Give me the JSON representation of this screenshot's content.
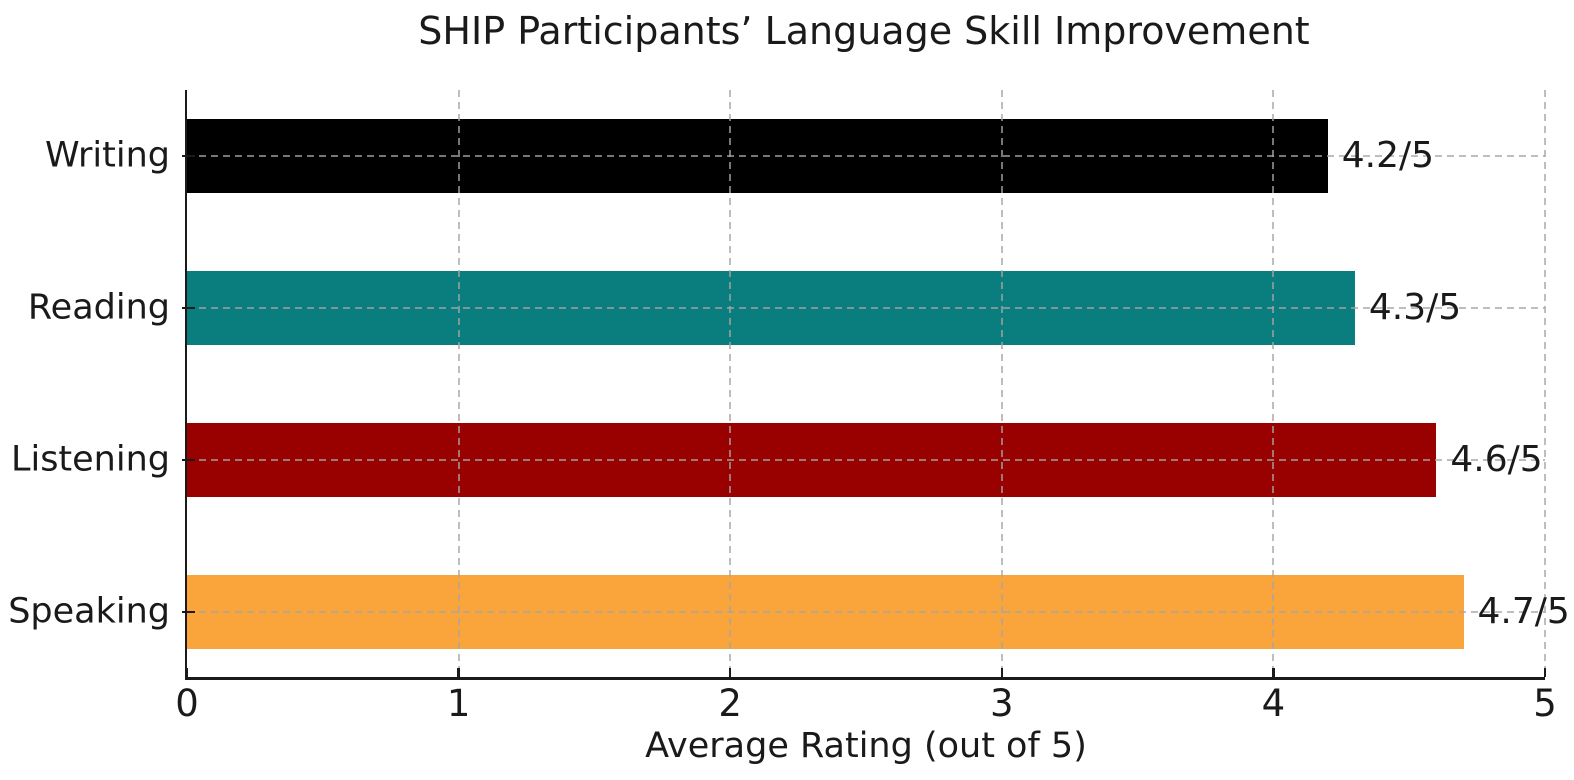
{
  "chart_data": {
    "type": "bar",
    "orientation": "horizontal",
    "title": "SHIP Participants’ Language Skill Improvement",
    "xlabel": "Average Rating (out of 5)",
    "ylabel": "",
    "categories": [
      "Writing",
      "Reading",
      "Listening",
      "Speaking"
    ],
    "values": [
      4.2,
      4.3,
      4.6,
      4.7
    ],
    "value_labels": [
      "4.2/5",
      "4.3/5",
      "4.6/5",
      "4.7/5"
    ],
    "bar_colors": [
      "#000000",
      "#0a7d7e",
      "#990000",
      "#faa43c"
    ],
    "xlim": [
      0,
      5
    ],
    "xtick_labels": [
      "0",
      "1",
      "2",
      "3",
      "4",
      "5"
    ],
    "grid": "dashed, horizontal at category centers and vertical at integer ticks, drawn above bars",
    "legend": "none",
    "colors": {
      "text": "#1a1a1a",
      "spine": "#1a1a1a",
      "grid": "#a5a5a5",
      "background": "#ffffff"
    }
  }
}
